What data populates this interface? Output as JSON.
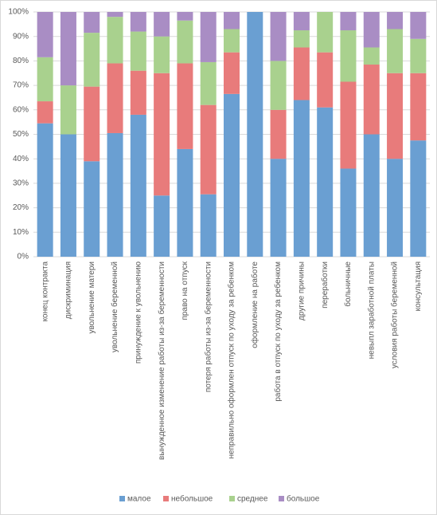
{
  "chart_data": {
    "type": "stacked_bar_100",
    "categories": [
      "конец контракта",
      "дискриминация",
      "увольнение матери",
      "увольнение беременной",
      "принуждение к увольнению",
      "вынужденное изменение работы из-за беременности",
      "право на отпуск",
      "потеря работы из-за беременности",
      "неправильно оформлен отпуск по уходу за ребенком",
      "оформление на работе",
      "работа в отпуск по уходу за ребенком",
      "другие причины",
      "переработки",
      "больничные",
      "невыпл заработной платы",
      "условия работы беременной",
      "консультация"
    ],
    "series": [
      {
        "name": "малое",
        "color": "#6a9fd2",
        "values": [
          54.5,
          50,
          39,
          50.5,
          58,
          25,
          44,
          25.5,
          66.5,
          100,
          40,
          64,
          61,
          36,
          50,
          40,
          47.5
        ]
      },
      {
        "name": "небольшое",
        "color": "#e87b7b",
        "values": [
          9,
          0,
          30.5,
          28.5,
          18,
          50,
          35,
          36.5,
          17,
          0,
          20,
          21.5,
          22.5,
          35.5,
          28.5,
          35,
          27.5
        ]
      },
      {
        "name": "среднее",
        "color": "#a9d18e",
        "values": [
          18,
          20,
          22,
          19,
          16,
          15,
          17.5,
          17.5,
          9.5,
          0,
          20,
          7,
          16.5,
          21,
          7,
          18,
          14
        ]
      },
      {
        "name": "большое",
        "color": "#a98dc4",
        "values": [
          18.5,
          30,
          8.5,
          2,
          8,
          10,
          3.5,
          20.5,
          7,
          0,
          20,
          7.5,
          0,
          7.5,
          14.5,
          7,
          11
        ]
      }
    ],
    "ylim": [
      0,
      100
    ],
    "yticks": [
      {
        "value": 0,
        "label": "0%"
      },
      {
        "value": 10,
        "label": "10%"
      },
      {
        "value": 20,
        "label": "20%"
      },
      {
        "value": 30,
        "label": "30%"
      },
      {
        "value": 40,
        "label": "40%"
      },
      {
        "value": 50,
        "label": "50%"
      },
      {
        "value": 60,
        "label": "60%"
      },
      {
        "value": 70,
        "label": "70%"
      },
      {
        "value": 80,
        "label": "80%"
      },
      {
        "value": 90,
        "label": "90%"
      },
      {
        "value": 100,
        "label": "100%"
      }
    ],
    "grid": true,
    "legend": "bottom"
  }
}
